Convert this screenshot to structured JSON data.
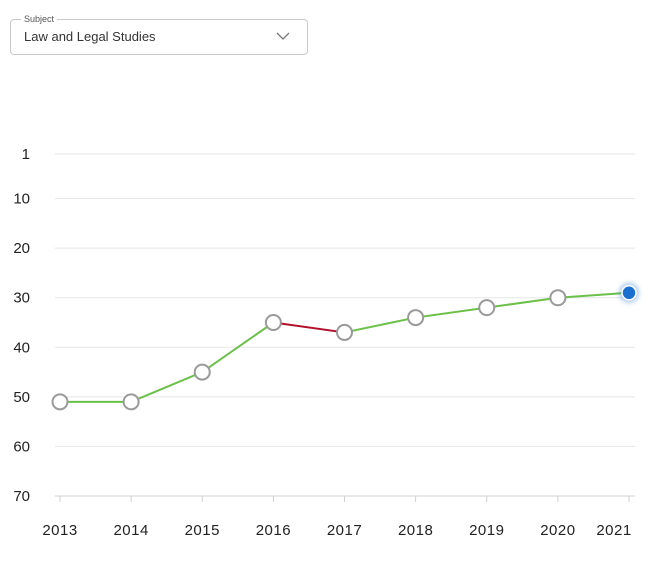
{
  "subject_selector": {
    "legend": "Subject",
    "value": "Law and Legal Studies"
  },
  "chart_data": {
    "type": "line",
    "title": "",
    "xlabel": "",
    "ylabel": "",
    "y_inverted": true,
    "ylim": [
      1,
      70
    ],
    "y_ticks": [
      "1",
      "10",
      "20",
      "30",
      "40",
      "50",
      "60",
      "70"
    ],
    "y_tick_values": [
      1,
      10,
      20,
      30,
      40,
      50,
      60,
      70
    ],
    "categories": [
      "2013",
      "2014",
      "2015",
      "2016",
      "2017",
      "2018",
      "2019",
      "2020",
      "2021"
    ],
    "series": [
      {
        "values": [
          51,
          51,
          45,
          35,
          37,
          34,
          32,
          30,
          29
        ]
      }
    ],
    "grid": true,
    "colors": {
      "improve": "#6cc04a",
      "decline": "#b0102a",
      "marker_fill": "#ffffff",
      "marker_stroke": "#9a9a9a",
      "current_marker": "#1a6fd1",
      "grid": "#e6e6e6",
      "axis": "#d0d0d0"
    }
  }
}
